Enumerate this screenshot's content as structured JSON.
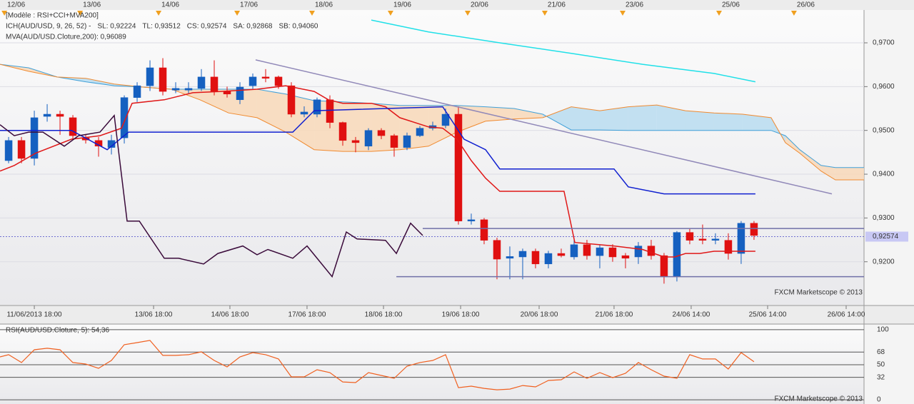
{
  "chart_data": [
    {
      "type": "candlestick",
      "template_label": "[Modèle : RSI+CCI+MVA200]",
      "indicator_labels": [
        {
          "text": "ICH(AUD/USD, 9, 26, 52) -",
          "color": "#e00000"
        },
        {
          "text": "SL: 0,92224",
          "color": "#e00000"
        },
        {
          "text": "TL: 0,93512",
          "color": "#0000cc"
        },
        {
          "text": "CS: 0,92574",
          "color": "#3a0a3a"
        },
        {
          "text": "SA: 0,92868",
          "color": "#f07820"
        },
        {
          "text": "SB: 0,94060",
          "color": "#3090d0"
        }
      ],
      "mva_label": {
        "text": "MVA(AUD/USD.Cloture,200): 0,96089",
        "color": "#20c8d8"
      },
      "watermark": "FXCM Marketscope © 2013",
      "candles": {
        "up_color": "#1560c0",
        "down_color": "#e01010",
        "open": [
          0.9431,
          0.9477,
          0.9436,
          0.9532,
          0.9537,
          0.9529,
          0.9483,
          0.9477,
          0.9461,
          0.9483,
          0.9575,
          0.9602,
          0.9643,
          0.9592,
          0.9592,
          0.9596,
          0.9622,
          0.9589,
          0.957,
          0.9602,
          0.9622,
          0.9622,
          0.9602,
          0.9537,
          0.9537,
          0.957,
          0.9518,
          0.9477,
          0.9464,
          0.95,
          0.9488,
          0.9461,
          0.9488,
          0.9505,
          0.9511,
          0.9537,
          0.9293,
          0.9296,
          0.9249,
          0.9208,
          0.9211,
          0.9224,
          0.9195,
          0.9219,
          0.9211,
          0.9239,
          0.9214,
          0.9232,
          0.9214,
          0.9211,
          0.9236,
          0.9214,
          0.9166,
          0.9267,
          0.9252,
          0.9249,
          0.9249,
          0.9219,
          0.9288
        ],
        "high": [
          0.9485,
          0.9485,
          0.9545,
          0.956,
          0.9545,
          0.9535,
          0.949,
          0.9485,
          0.949,
          0.958,
          0.961,
          0.966,
          0.9665,
          0.961,
          0.961,
          0.964,
          0.966,
          0.96,
          0.961,
          0.963,
          0.964,
          0.9625,
          0.961,
          0.9555,
          0.9575,
          0.958,
          0.952,
          0.9485,
          0.9505,
          0.9505,
          0.9492,
          0.9495,
          0.951,
          0.952,
          0.955,
          0.9555,
          0.931,
          0.93,
          0.9255,
          0.9235,
          0.923,
          0.923,
          0.9225,
          0.923,
          0.925,
          0.925,
          0.924,
          0.924,
          0.922,
          0.9245,
          0.925,
          0.922,
          0.927,
          0.9275,
          0.9285,
          0.9265,
          0.9265,
          0.9293,
          0.9293
        ],
        "low": [
          0.9425,
          0.9425,
          0.942,
          0.952,
          0.949,
          0.948,
          0.947,
          0.944,
          0.9445,
          0.947,
          0.9565,
          0.959,
          0.958,
          0.9585,
          0.9585,
          0.959,
          0.958,
          0.9575,
          0.956,
          0.9595,
          0.961,
          0.9595,
          0.953,
          0.953,
          0.953,
          0.9505,
          0.9465,
          0.945,
          0.9455,
          0.948,
          0.944,
          0.9455,
          0.9485,
          0.95,
          0.9505,
          0.9285,
          0.9285,
          0.924,
          0.916,
          0.916,
          0.916,
          0.9185,
          0.9185,
          0.921,
          0.9205,
          0.9205,
          0.9185,
          0.92,
          0.9185,
          0.9195,
          0.9205,
          0.915,
          0.9155,
          0.924,
          0.924,
          0.924,
          0.9205,
          0.9195,
          0.925
        ],
        "close": [
          0.9477,
          0.9436,
          0.9529,
          0.9537,
          0.9532,
          0.9488,
          0.9478,
          0.9464,
          0.9477,
          0.9575,
          0.9602,
          0.9643,
          0.9589,
          0.9596,
          0.9596,
          0.9622,
          0.9589,
          0.9583,
          0.9599,
          0.9622,
          0.9619,
          0.9602,
          0.9537,
          0.9542,
          0.957,
          0.9518,
          0.9477,
          0.9472,
          0.95,
          0.9488,
          0.9461,
          0.9488,
          0.9505,
          0.9511,
          0.9537,
          0.9293,
          0.9296,
          0.9249,
          0.9206,
          0.9212,
          0.9224,
          0.9195,
          0.9219,
          0.9214,
          0.9239,
          0.9214,
          0.9232,
          0.9211,
          0.9208,
          0.9236,
          0.9214,
          0.9166,
          0.9267,
          0.9249,
          0.9249,
          0.9252,
          0.9219,
          0.9288,
          0.926
        ]
      },
      "cloud": {
        "a_color": "#f08a30",
        "b_color": "#40a0d8",
        "fill_a_below": "#f8d8b8",
        "fill_a_above": "#b8dcf0",
        "x": [
          -0.67,
          1.56,
          3.78,
          6,
          8.22,
          10.44,
          12.67,
          14.89,
          17.11,
          19.33,
          21.56,
          23.78,
          26,
          28.22,
          30.44,
          32.67,
          34.89,
          37.11,
          39.33,
          41.56,
          43.78,
          46,
          48.22,
          50.44,
          52.67,
          54.89,
          57.11,
          59.33,
          60.44,
          61.56,
          63.22,
          64.33,
          66.56
        ],
        "span_a": [
          0.9651,
          0.9635,
          0.9622,
          0.9619,
          0.9606,
          0.9599,
          0.9594,
          0.957,
          0.954,
          0.9529,
          0.9496,
          0.9456,
          0.9452,
          0.9452,
          0.9456,
          0.9464,
          0.9496,
          0.9521,
          0.9526,
          0.9529,
          0.9554,
          0.9545,
          0.9554,
          0.9558,
          0.9545,
          0.954,
          0.9537,
          0.9529,
          0.9472,
          0.9448,
          0.9407,
          0.9387,
          0.9387
        ],
        "span_b": [
          0.9651,
          0.9643,
          0.9622,
          0.9611,
          0.9602,
          0.9599,
          0.9594,
          0.9594,
          0.9594,
          0.9594,
          0.9583,
          0.9568,
          0.9565,
          0.9562,
          0.9557,
          0.9557,
          0.9557,
          0.9554,
          0.955,
          0.9537,
          0.9501,
          0.9501,
          0.95,
          0.95,
          0.95,
          0.95,
          0.95,
          0.95,
          0.9488,
          0.9456,
          0.942,
          0.9415,
          0.9415
        ]
      },
      "lines": [
        {
          "color": "#20e0e8",
          "x": [
            28.22,
            32.67,
            38.22,
            43.78,
            49.33,
            54.89,
            58.11
          ],
          "values": [
            0.9752,
            0.9725,
            0.97,
            0.9676,
            0.9651,
            0.963,
            0.9611
          ]
        },
        {
          "color": "#e01818",
          "x": [
            -0.67,
            0.44,
            2.11,
            4.89,
            7.11,
            8.78,
            9.61,
            12.11,
            14.33,
            16.56,
            19.33,
            21.56,
            23.78,
            24.89,
            26,
            28.22,
            29.33,
            30.44,
            32.67,
            33.78,
            34.89,
            36,
            37.11,
            38.22,
            43.22,
            44.06,
            47.11,
            49.33,
            51,
            51.83,
            52.67,
            53.78,
            54.89,
            58.11
          ],
          "values": [
            0.9407,
            0.942,
            0.9448,
            0.948,
            0.9488,
            0.9505,
            0.9562,
            0.957,
            0.9586,
            0.9589,
            0.9594,
            0.9602,
            0.9589,
            0.957,
            0.9562,
            0.9562,
            0.9554,
            0.9529,
            0.9508,
            0.9505,
            0.948,
            0.9431,
            0.9391,
            0.9361,
            0.9361,
            0.9244,
            0.9236,
            0.9228,
            0.9211,
            0.9211,
            0.9219,
            0.9219,
            0.9224,
            0.9224
          ]
        },
        {
          "color": "#1020d0",
          "x": [
            -0.67,
            4.89,
            7.67,
            9.33,
            22.11,
            23.78,
            33.78,
            35.44,
            37.11,
            38.22,
            47.11,
            48.22,
            51,
            58.11
          ],
          "values": [
            0.95,
            0.95,
            0.9456,
            0.9496,
            0.9496,
            0.9545,
            0.9554,
            0.948,
            0.9456,
            0.9412,
            0.9412,
            0.9371,
            0.9355,
            0.9355
          ]
        },
        {
          "color": "#3a0a3a",
          "x": [
            -0.67,
            0.44,
            1.56,
            2.67,
            4.33,
            5.44,
            7.11,
            8.22,
            9.22,
            10.17,
            12.11,
            13.22,
            15.17,
            16.28,
            18.22,
            19.33,
            20.17,
            22.11,
            23.22,
            25.17,
            26.28,
            27.11,
            29.33,
            30.17,
            31.28,
            32.22
          ],
          "values": [
            0.9513,
            0.9488,
            0.9496,
            0.9496,
            0.9464,
            0.9488,
            0.9496,
            0.9534,
            0.9293,
            0.9293,
            0.9208,
            0.9208,
            0.9195,
            0.9219,
            0.9236,
            0.9216,
            0.9228,
            0.9208,
            0.9236,
            0.9166,
            0.9268,
            0.9252,
            0.9249,
            0.9219,
            0.9288,
            0.926
          ]
        },
        {
          "color": "#9088b8",
          "x": [
            19.22,
            64.06
          ],
          "values": [
            0.9661,
            0.9355
          ]
        },
        {
          "color": "#7070a8",
          "x": [
            32.22,
            66.56
          ],
          "values": [
            0.9276,
            0.9276
          ]
        },
        {
          "color": "#7070a8",
          "x": [
            30.17,
            66.56
          ],
          "values": [
            0.9166,
            0.9166
          ]
        }
      ],
      "current_price": {
        "value": 0.92574,
        "label": "0,92574"
      },
      "xlim": [
        -0.67,
        66.56
      ],
      "ylim": [
        0.9105,
        0.9775
      ],
      "yticks": [
        {
          "value": 0.92,
          "label": "0,9200"
        },
        {
          "value": 0.93,
          "label": "0,9300"
        },
        {
          "value": 0.94,
          "label": "0,9400"
        },
        {
          "value": 0.95,
          "label": "0,9500"
        },
        {
          "value": 0.96,
          "label": "0,9600"
        },
        {
          "value": 0.97,
          "label": "0,9700"
        }
      ],
      "date_ticks": [
        {
          "value": -0.33,
          "label": "12/06"
        },
        {
          "value": 5.56,
          "label": "13/06"
        },
        {
          "value": 11.67,
          "label": "14/06"
        },
        {
          "value": 17.78,
          "label": "17/06"
        },
        {
          "value": 23.61,
          "label": "18/06"
        },
        {
          "value": 29.72,
          "label": "19/06"
        },
        {
          "value": 35.72,
          "label": "20/06"
        },
        {
          "value": 41.72,
          "label": "21/06"
        },
        {
          "value": 47.78,
          "label": "23/06"
        },
        {
          "value": 55.28,
          "label": "25/06"
        },
        {
          "value": 61.11,
          "label": "26/06"
        }
      ],
      "xticks": [
        {
          "value": 2.0,
          "label": "11/06/2013 18:00"
        },
        {
          "value": 11.28,
          "label": "13/06 18:00"
        },
        {
          "value": 17.22,
          "label": "14/06 18:00"
        },
        {
          "value": 23.22,
          "label": "17/06 18:00"
        },
        {
          "value": 29.17,
          "label": "18/06 18:00"
        },
        {
          "value": 35.17,
          "label": "19/06 18:00"
        },
        {
          "value": 41.28,
          "label": "20/06 18:00"
        },
        {
          "value": 47.11,
          "label": "21/06 18:00"
        },
        {
          "value": 53.11,
          "label": "24/06 14:00"
        },
        {
          "value": 59.06,
          "label": "25/06 14:00"
        },
        {
          "value": 65.17,
          "label": "26/06 14:00"
        }
      ],
      "grid": true
    },
    {
      "type": "line",
      "title": "RSI(AUD/USD.Cloture, 5): 54,36",
      "watermark": "FXCM Marketscope © 2013",
      "color": "#f06020",
      "x": [
        -0.67,
        0,
        1,
        2,
        3,
        4,
        5,
        6,
        7,
        8,
        9,
        10,
        11,
        12,
        13,
        14,
        15,
        16,
        17,
        18,
        19,
        20,
        21,
        22,
        23,
        24,
        25,
        26,
        27,
        28,
        29,
        30,
        31,
        32,
        33,
        34,
        35,
        36,
        37,
        38,
        39,
        40,
        41,
        42,
        43,
        44,
        45,
        46,
        47,
        48,
        49,
        50,
        51,
        52,
        53,
        54,
        55,
        56,
        57,
        58
      ],
      "values": [
        61.2,
        64.3,
        53.1,
        71.4,
        73.5,
        71.4,
        53.1,
        51.0,
        44.9,
        56.1,
        78.6,
        81.6,
        84.7,
        63.3,
        63.3,
        64.3,
        68.4,
        56.1,
        46.9,
        61.2,
        67.3,
        64.3,
        58.2,
        32.7,
        32.7,
        42.9,
        38.8,
        25.5,
        24.5,
        38.8,
        34.7,
        30.6,
        48.0,
        53.1,
        56.1,
        64.3,
        17.3,
        19.4,
        16.3,
        14.3,
        15.3,
        20.4,
        18.4,
        27.6,
        28.6,
        39.8,
        30.6,
        38.8,
        31.6,
        37.8,
        53.1,
        42.9,
        33.7,
        30.6,
        64.3,
        58.2,
        58.2,
        43.9,
        67.3,
        54.36
      ],
      "xlim": [
        -0.67,
        66.56
      ],
      "ylim": [
        -6,
        107
      ],
      "yticks": [
        100,
        68,
        50,
        32,
        0
      ],
      "grid": true
    }
  ]
}
